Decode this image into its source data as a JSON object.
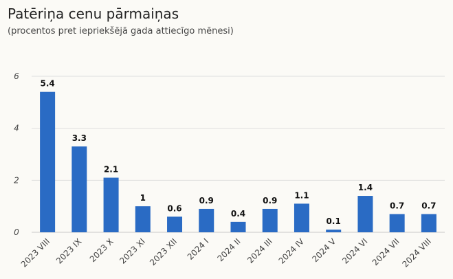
{
  "chart_data": {
    "type": "bar",
    "title": "Patēriņa cenu pārmaiņas",
    "subtitle": "(procentos pret iepriekšējā gada attiecīgo mēnesi)",
    "xlabel": "",
    "ylabel": "",
    "ylim": [
      0,
      6
    ],
    "yticks": [
      0,
      2,
      4,
      6
    ],
    "grid": true,
    "bar_color": "#2a6bc4",
    "categories": [
      "2023 VIII",
      "2023 IX",
      "2023 X",
      "2023 XI",
      "2023 XII",
      "2024 I",
      "2024 II",
      "2024 III",
      "2024 IV",
      "2024 V",
      "2024 VI",
      "2024 VII",
      "2024 VIII"
    ],
    "values": [
      5.4,
      3.3,
      2.1,
      1,
      0.6,
      0.9,
      0.4,
      0.9,
      1.1,
      0.1,
      1.4,
      0.7,
      0.7
    ]
  }
}
